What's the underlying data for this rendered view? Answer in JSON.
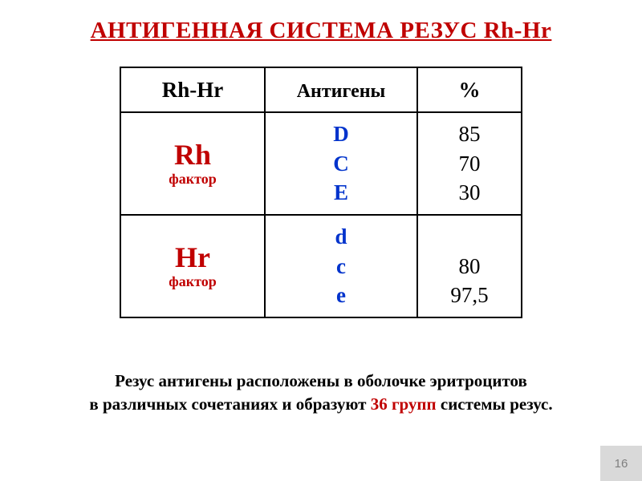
{
  "colors": {
    "title": "#c00000",
    "factor": "#c00000",
    "antigen": "#0033cc",
    "text": "#000000",
    "accent36": "#c00000",
    "pagebox_bg": "#d9d9d9",
    "pagebox_fg": "#7f7f7f"
  },
  "title": "АНТИГЕННАЯ СИСТЕМА РЕЗУС Rh-Hr",
  "table": {
    "headers": {
      "c1": "Rh-Hr",
      "c2": "Антигены",
      "c3": "%"
    },
    "rows": [
      {
        "factor_main": "Rh",
        "factor_sub": "фактор",
        "antigens": [
          "D",
          "C",
          "E"
        ],
        "percents": [
          "85",
          "70",
          "30"
        ]
      },
      {
        "factor_main": "Hr",
        "factor_sub": "фактор",
        "antigens": [
          "d",
          "c",
          "e"
        ],
        "percents": [
          "",
          "80",
          "97,5"
        ]
      }
    ]
  },
  "footer": {
    "line1": "Резус антигены расположены в оболочке эритроцитов",
    "line2a": "в различных сочетаниях и образуют ",
    "accent": "36 групп",
    "line2b": " системы резус."
  },
  "page_number": "16"
}
